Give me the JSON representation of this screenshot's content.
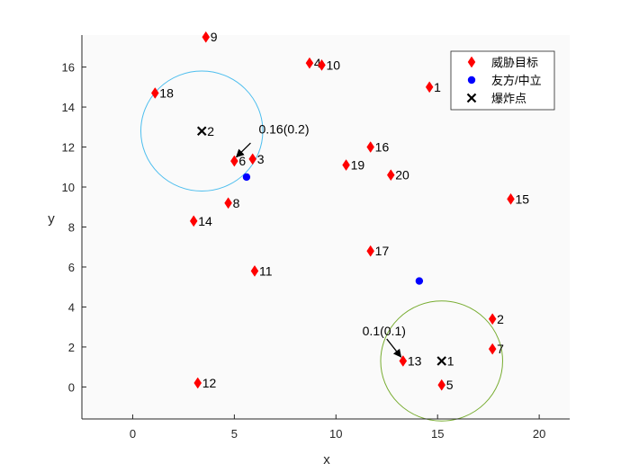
{
  "chart_data": {
    "type": "scatter",
    "xlabel": "x",
    "ylabel": "y",
    "xlim": [
      -2.5,
      21.5
    ],
    "ylim": [
      -1.6,
      17.6
    ],
    "xticks": [
      0,
      5,
      10,
      15,
      20
    ],
    "yticks": [
      0,
      2,
      4,
      6,
      8,
      10,
      12,
      14,
      16
    ],
    "grid": false,
    "legend_position": "top-right",
    "colors": {
      "threat": "#ff0000",
      "friendly": "#0000ff",
      "blast": "#000000",
      "circle1": "#4dbeee",
      "circle2": "#77ac30"
    },
    "legend": [
      {
        "key": "threat",
        "label": "威胁目标",
        "marker": "diamond"
      },
      {
        "key": "friendly",
        "label": "友方/中立",
        "marker": "circle"
      },
      {
        "key": "blast",
        "label": "爆炸点",
        "marker": "x"
      }
    ],
    "threats": [
      {
        "label": "1",
        "x": 14.6,
        "y": 15.0
      },
      {
        "label": "2",
        "x": 17.7,
        "y": 3.4
      },
      {
        "label": "3",
        "x": 5.9,
        "y": 11.4
      },
      {
        "label": "4",
        "x": 8.7,
        "y": 16.2
      },
      {
        "label": "5",
        "x": 15.2,
        "y": 0.1
      },
      {
        "label": "6",
        "x": 5.0,
        "y": 11.3
      },
      {
        "label": "7",
        "x": 17.7,
        "y": 1.9
      },
      {
        "label": "8",
        "x": 4.7,
        "y": 9.2
      },
      {
        "label": "9",
        "x": 3.6,
        "y": 17.5
      },
      {
        "label": "10",
        "x": 9.3,
        "y": 16.1
      },
      {
        "label": "11",
        "x": 6.0,
        "y": 5.8
      },
      {
        "label": "12",
        "x": 3.2,
        "y": 0.2
      },
      {
        "label": "13",
        "x": 13.3,
        "y": 1.3
      },
      {
        "label": "14",
        "x": 3.0,
        "y": 8.3
      },
      {
        "label": "15",
        "x": 18.6,
        "y": 9.4
      },
      {
        "label": "16",
        "x": 11.7,
        "y": 12.0
      },
      {
        "label": "17",
        "x": 11.7,
        "y": 6.8
      },
      {
        "label": "18",
        "x": 1.1,
        "y": 14.7
      },
      {
        "label": "19",
        "x": 10.5,
        "y": 11.1
      },
      {
        "label": "20",
        "x": 12.7,
        "y": 10.6
      }
    ],
    "friendly": [
      {
        "x": 5.6,
        "y": 10.5
      },
      {
        "x": 14.1,
        "y": 5.3
      }
    ],
    "blasts": [
      {
        "label": "1",
        "x": 15.2,
        "y": 1.3,
        "radius": 3.0,
        "circle_color_key": "circle2"
      },
      {
        "label": "2",
        "x": 3.4,
        "y": 12.8,
        "radius": 3.0,
        "circle_color_key": "circle1"
      }
    ],
    "annotations": [
      {
        "text": "0.16(0.2)",
        "text_x": 6.2,
        "text_y": 12.9,
        "arrow_from": [
          5.8,
          12.2
        ],
        "arrow_to": [
          5.1,
          11.5
        ]
      },
      {
        "text": "0.1(0.1)",
        "text_x": 11.3,
        "text_y": 2.8,
        "arrow_from": [
          12.5,
          2.4
        ],
        "arrow_to": [
          13.2,
          1.5
        ]
      }
    ]
  }
}
